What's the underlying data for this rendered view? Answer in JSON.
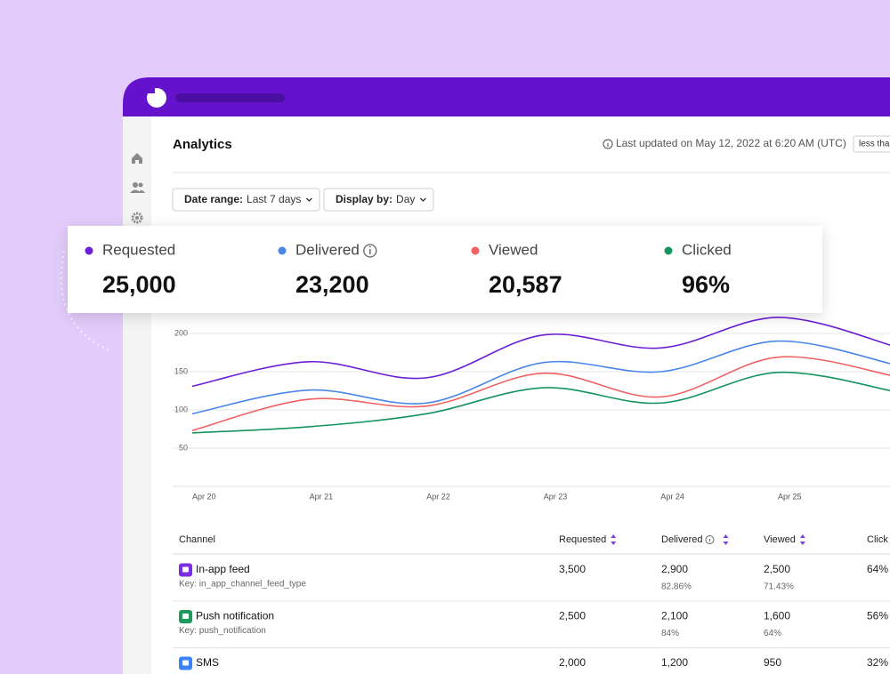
{
  "header": {
    "title": "Analytics",
    "last_updated": "Last updated on May 12, 2022 at 6:20 AM (UTC)",
    "badge": "less tha"
  },
  "filters": [
    {
      "label": "Date range:",
      "value": "Last 7 days"
    },
    {
      "label": "Display by:",
      "value": "Day"
    }
  ],
  "totals": [
    "25,000",
    "23,200",
    "20,587",
    "96%"
  ],
  "chart_data": {
    "type": "line",
    "categories": [
      "Apr 20",
      "Apr 21",
      "Apr 22",
      "Apr 23",
      "Apr 24",
      "Apr 25",
      null
    ],
    "series": [
      {
        "name": "Requested",
        "color": "#6b1fd6",
        "values": [
          131,
          163,
          142,
          198,
          181,
          221,
          183
        ]
      },
      {
        "name": "Delivered",
        "color": "#4a86e8",
        "values": [
          95,
          126,
          109,
          162,
          150,
          190,
          159
        ]
      },
      {
        "name": "Viewed",
        "color": "#f06262",
        "values": [
          73,
          114,
          105,
          148,
          117,
          169,
          144
        ]
      },
      {
        "name": "Clicked",
        "color": "#14935f",
        "values": [
          70,
          78,
          95,
          129,
          109,
          149,
          124
        ]
      }
    ],
    "ylim": [
      0,
      250
    ],
    "yticks": [
      50,
      100,
      150,
      200
    ],
    "grid": true
  },
  "table": {
    "columns": [
      "Channel",
      "Requested",
      "Delivered",
      "Viewed",
      "Click"
    ],
    "rows": [
      {
        "channel": "In-app feed",
        "key": "Key: in_app_channel_feed_type",
        "cells": [
          [
            "3,500"
          ],
          [
            "2,900",
            "82.86%"
          ],
          [
            "2,500",
            "71.43%"
          ],
          [
            "64%"
          ]
        ]
      },
      {
        "channel": "Push notification",
        "key": "Key: push_notification",
        "cells": [
          [
            "2,500"
          ],
          [
            "2,100",
            "84%"
          ],
          [
            "1,600",
            "64%"
          ],
          [
            "56%"
          ]
        ]
      },
      {
        "channel": "SMS",
        "cells": [
          [
            "2,000"
          ],
          [
            "1,200"
          ],
          [
            "950"
          ],
          [
            "32%"
          ]
        ]
      }
    ]
  }
}
